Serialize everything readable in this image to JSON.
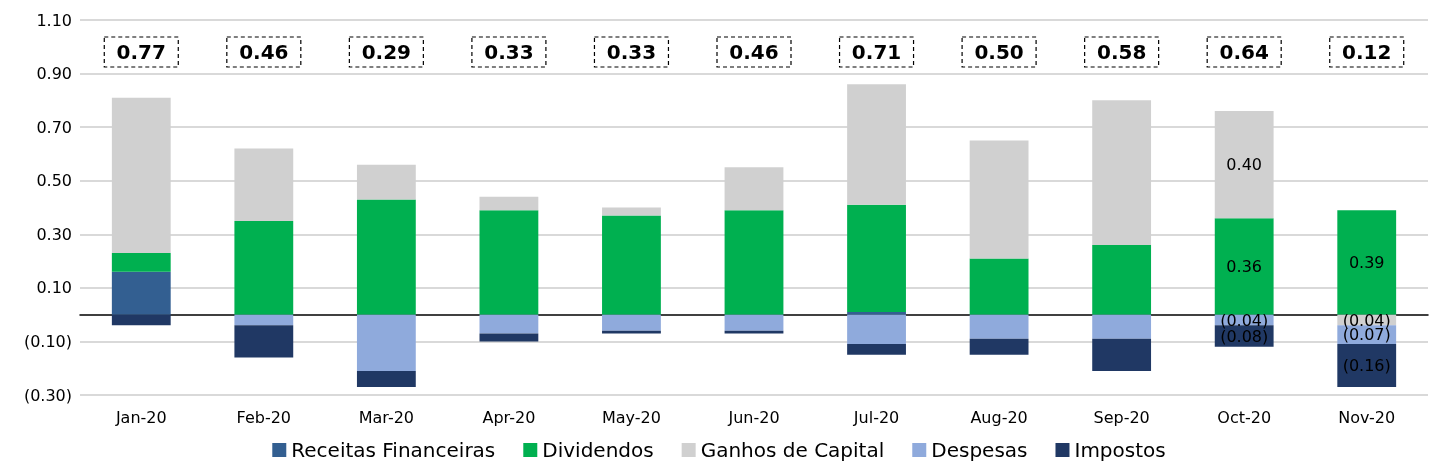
{
  "chart_data": {
    "type": "bar",
    "stacked": true,
    "categories": [
      "Jan-20",
      "Feb-20",
      "Mar-20",
      "Apr-20",
      "May-20",
      "Jun-20",
      "Jul-20",
      "Aug-20",
      "Sep-20",
      "Oct-20",
      "Nov-20"
    ],
    "series": [
      {
        "name": "Receitas Financeiras",
        "color": "#335f91",
        "values": [
          0.16,
          null,
          null,
          null,
          null,
          null,
          0.01,
          null,
          null,
          null,
          null
        ]
      },
      {
        "name": "Dividendos",
        "color": "#00b050",
        "values": [
          0.07,
          0.35,
          0.43,
          0.39,
          0.37,
          0.39,
          0.4,
          0.21,
          0.26,
          0.36,
          0.39
        ],
        "value_labels": [
          null,
          null,
          null,
          null,
          null,
          null,
          null,
          null,
          null,
          "0.36",
          "0.39"
        ]
      },
      {
        "name": "Ganhos de Capital",
        "color": "#d0d0d0",
        "values": [
          0.58,
          0.27,
          0.13,
          0.05,
          0.03,
          0.16,
          0.45,
          0.44,
          0.54,
          0.4,
          -0.04
        ],
        "value_labels": [
          null,
          null,
          null,
          null,
          null,
          null,
          null,
          null,
          null,
          "0.40",
          "(0.04)"
        ]
      },
      {
        "name": "Despesas",
        "color": "#8faadc",
        "values": [
          null,
          -0.04,
          -0.21,
          -0.07,
          -0.06,
          -0.06,
          -0.11,
          -0.09,
          -0.09,
          -0.04,
          -0.07
        ],
        "value_labels": [
          null,
          null,
          null,
          null,
          null,
          null,
          null,
          null,
          null,
          "(0.04)",
          "(0.07)"
        ]
      },
      {
        "name": "Impostos",
        "color": "#203864",
        "values": [
          -0.04,
          -0.12,
          -0.06,
          -0.03,
          -0.01,
          -0.01,
          -0.04,
          -0.06,
          -0.12,
          -0.08,
          -0.16
        ],
        "value_labels": [
          null,
          null,
          null,
          null,
          null,
          null,
          null,
          null,
          null,
          "(0.08)",
          "(0.16)"
        ]
      }
    ],
    "annotations": [
      "0.77",
      "0.46",
      "0.29",
      "0.33",
      "0.33",
      "0.46",
      "0.71",
      "0.50",
      "0.58",
      "0.64",
      "0.12"
    ],
    "ylim": [
      -0.3,
      1.1
    ],
    "yticks": [
      {
        "value": -0.3,
        "label": "(0.30)"
      },
      {
        "value": -0.1,
        "label": "(0.10)"
      },
      {
        "value": 0.1,
        "label": "0.10"
      },
      {
        "value": 0.3,
        "label": "0.30"
      },
      {
        "value": 0.5,
        "label": "0.50"
      },
      {
        "value": 0.7,
        "label": "0.70"
      },
      {
        "value": 0.9,
        "label": "0.90"
      },
      {
        "value": 1.1,
        "label": "1.10"
      }
    ],
    "grid": "y",
    "legend": "bottom"
  }
}
